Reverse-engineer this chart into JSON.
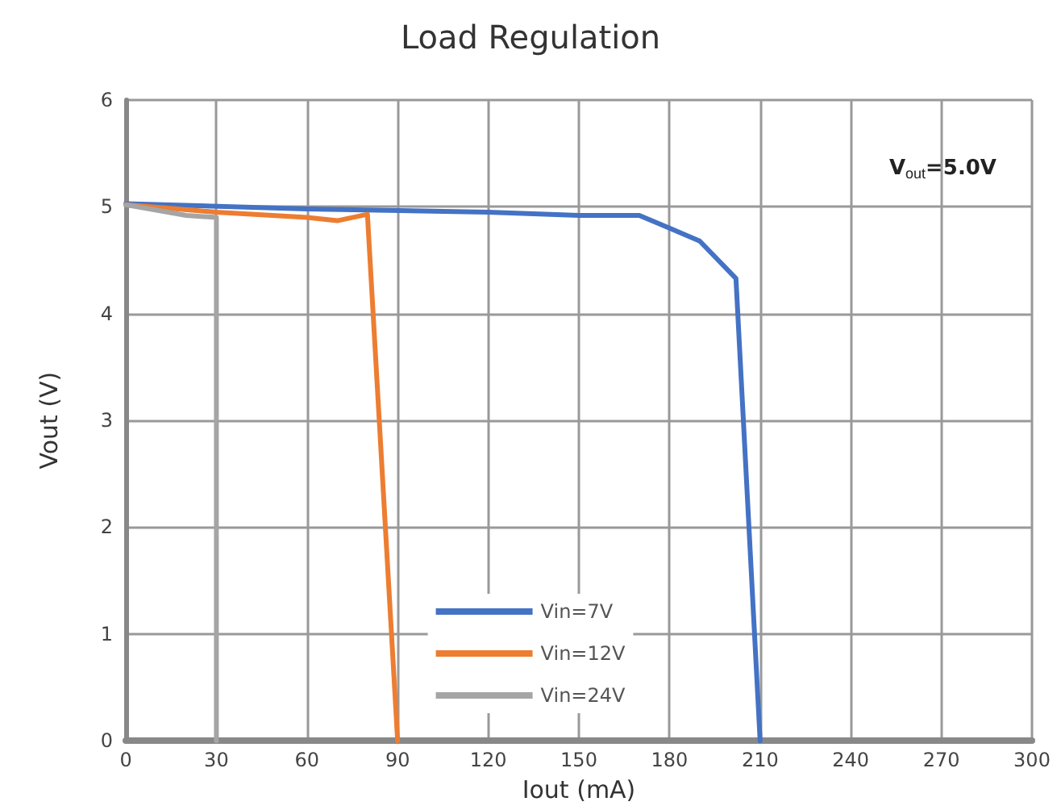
{
  "chart_data": {
    "type": "line",
    "title": "Load Regulation",
    "xlabel": "Iout (mA)",
    "ylabel": "Vout (V)",
    "annotations": [
      "V$_{out}$=5.0V"
    ],
    "xlim": [
      0,
      300
    ],
    "xticks": [
      0,
      30,
      60,
      90,
      120,
      150,
      180,
      210,
      240,
      270,
      300
    ],
    "ylim": [
      0,
      6
    ],
    "yticks": [
      0,
      1,
      2,
      3,
      4,
      5,
      6
    ],
    "grid": true,
    "legend": "bottom",
    "marker": "none",
    "line_style": "solid",
    "series": [
      {
        "name": "Vin=7V",
        "color": "#4472c4",
        "x": [
          0,
          60,
          120,
          150,
          170,
          180,
          190,
          202,
          210
        ],
        "values": [
          5.03,
          4.98,
          4.95,
          4.92,
          4.92,
          4.8,
          4.68,
          4.33,
          0
        ]
      },
      {
        "name": "Vin=12V",
        "color": "#ed7d31",
        "x": [
          0,
          30,
          60,
          70,
          80,
          90
        ],
        "values": [
          5.02,
          4.95,
          4.9,
          4.87,
          4.93,
          0
        ]
      },
      {
        "name": "Vin=24V",
        "color": "#a5a5a5",
        "x": [
          0,
          20,
          30,
          30
        ],
        "values": [
          5.02,
          4.92,
          4.9,
          0
        ]
      }
    ]
  }
}
